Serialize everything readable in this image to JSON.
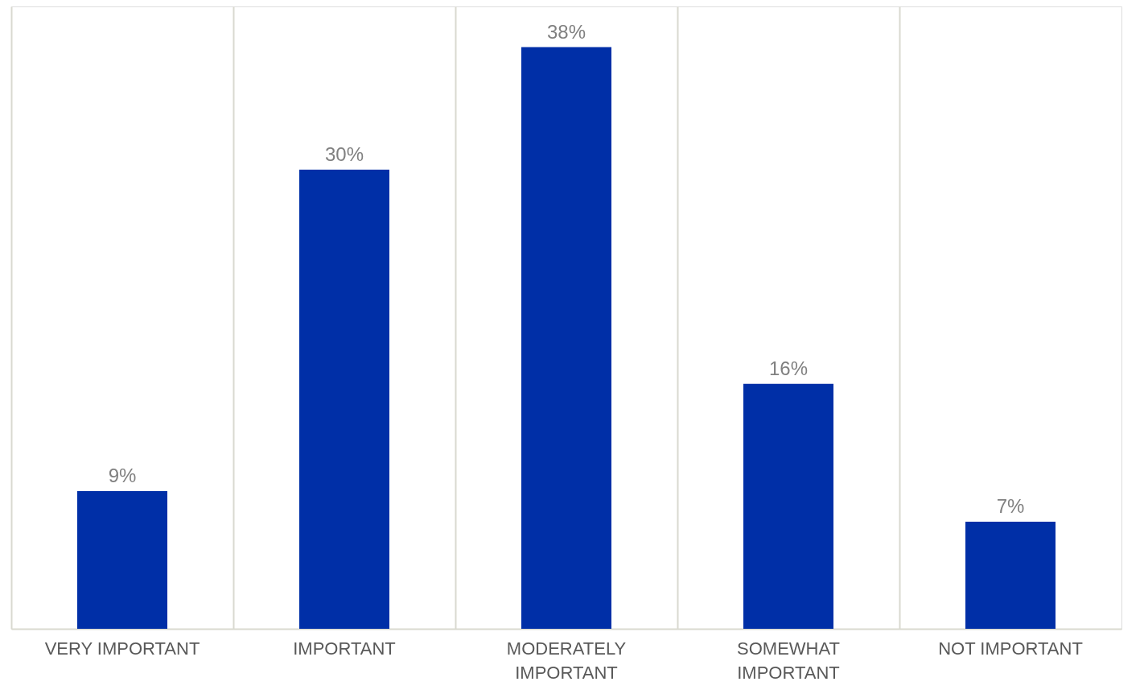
{
  "chart_data": {
    "type": "bar",
    "categories": [
      "VERY IMPORTANT",
      "IMPORTANT",
      "MODERATELY IMPORTANT",
      "SOMEWHAT IMPORTANT",
      "NOT IMPORTANT"
    ],
    "values": [
      9,
      30,
      38,
      16,
      7
    ],
    "value_labels": [
      "9%",
      "30%",
      "38%",
      "16%",
      "7%"
    ],
    "color": "#002fa7",
    "grid": "x"
  }
}
